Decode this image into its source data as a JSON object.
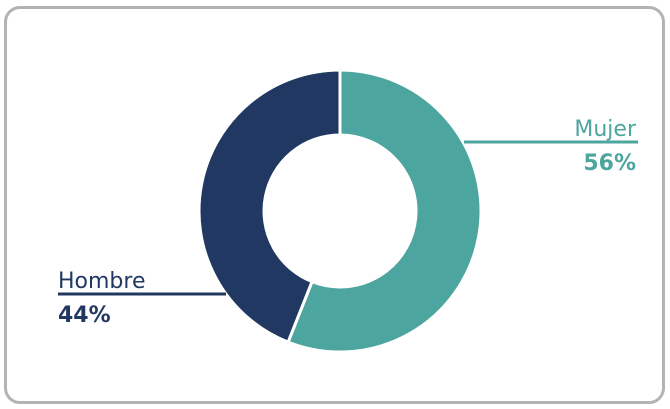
{
  "chart_data": {
    "type": "pie",
    "style": "donut",
    "slices": [
      {
        "label": "Mujer",
        "value": 56,
        "value_label": "56%",
        "color": "#4ca59e"
      },
      {
        "label": "Hombre",
        "value": 44,
        "value_label": "44%",
        "color": "#213962"
      }
    ],
    "legend": "callout-labels"
  }
}
